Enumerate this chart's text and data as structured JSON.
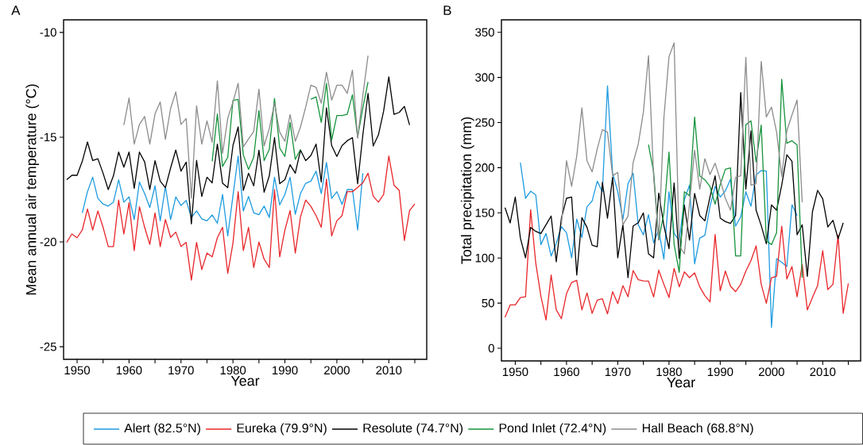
{
  "chart_data": [
    {
      "type": "line",
      "title": "A",
      "xlabel": "Year",
      "ylabel": "Mean annual air temperature (°C)",
      "xlim": [
        1947.4,
        2017.3
      ],
      "ylim": [
        -25.6,
        -9.4
      ],
      "xticks": [
        1950,
        {
          "value": 1955,
          "label": null
        },
        1960,
        {
          "value": 1965,
          "label": null
        },
        1970,
        {
          "value": 1975,
          "label": null
        },
        1980,
        {
          "value": 1985,
          "label": null
        },
        1990,
        {
          "value": 1995,
          "label": null
        },
        2000,
        {
          "value": 2005,
          "label": null
        },
        2010,
        {
          "value": 2015,
          "label": null
        }
      ],
      "yticks": [
        -25,
        -20,
        -15,
        -10
      ],
      "legend": "bottom",
      "line_style": "solid",
      "series": [
        {
          "name": "Alert (82.5°N)",
          "color": "#1e9be0",
          "x": [
            1951,
            1952,
            1953,
            1954,
            1955,
            1956,
            1957,
            1958,
            1959,
            1960,
            1961,
            1962,
            1963,
            1964,
            1965,
            1966,
            1967,
            1968,
            1969,
            1970,
            1971,
            1972,
            1973,
            1974,
            1975,
            1976,
            1977,
            1978,
            1979,
            1980,
            1981,
            1982,
            1983,
            1984,
            1985,
            1986,
            1987,
            1988,
            1989,
            1990,
            1991,
            1992,
            1993,
            1994,
            1995,
            1996,
            1997,
            1998,
            1999,
            2000,
            2001,
            2002,
            2003,
            2004,
            2005
          ],
          "values": [
            -18.61,
            -17.6,
            -16.91,
            -17.92,
            -18.19,
            -18.29,
            -18.1,
            -17.03,
            -18.1,
            -17.85,
            -18.93,
            -17.14,
            -17.69,
            -18.36,
            -17.32,
            -18.99,
            -17.35,
            -18.93,
            -17.85,
            -18.26,
            -18.02,
            -18.83,
            -18.52,
            -18.9,
            -18.99,
            -18.71,
            -19.11,
            -17.73,
            -19.71,
            -17.8,
            -15.9,
            -18.52,
            -17.83,
            -18.61,
            -18.7,
            -18.29,
            -18.83,
            -16.91,
            -18.23,
            -17.73,
            -16.91,
            -18.68,
            -17.69,
            -17.2,
            -17.1,
            -16.62,
            -17.69,
            -16.21,
            -17.92,
            -17.6,
            -18.21,
            -17.5,
            -17.5,
            -19.43,
            -16.72
          ]
        },
        {
          "name": "Eureka (79.9°N)",
          "color": "#e8262a",
          "x": [
            1948,
            1949,
            1950,
            1951,
            1952,
            1953,
            1954,
            1955,
            1956,
            1957,
            1958,
            1959,
            1960,
            1961,
            1962,
            1963,
            1964,
            1965,
            1966,
            1967,
            1968,
            1969,
            1970,
            1971,
            1972,
            1973,
            1974,
            1975,
            1976,
            1977,
            1978,
            1979,
            1980,
            1981,
            1982,
            1983,
            1984,
            1985,
            1986,
            1987,
            1988,
            1989,
            1990,
            1991,
            1992,
            1993,
            1994,
            1995,
            1996,
            1997,
            1998,
            1999,
            2000,
            2001,
            2002,
            2003,
            2004,
            2005,
            2006,
            2007,
            2008,
            2009,
            2010,
            2011,
            2012,
            2013,
            2014,
            2015
          ],
          "values": [
            -20.02,
            -19.62,
            -19.8,
            -19.43,
            -18.42,
            -19.43,
            -18.52,
            -19.3,
            -20.22,
            -20.22,
            -18.0,
            -19.62,
            -18.13,
            -20.41,
            -18.32,
            -19.3,
            -20.12,
            -18.61,
            -20.22,
            -18.93,
            -19.78,
            -19.53,
            -20.22,
            -20.02,
            -21.82,
            -20.02,
            -21.32,
            -20.53,
            -20.71,
            -19.8,
            -19.3,
            -21.5,
            -20.06,
            -17.6,
            -20.41,
            -19.3,
            -21.22,
            -20.0,
            -20.82,
            -21.22,
            -17.5,
            -20.71,
            -19.43,
            -18.5,
            -20.53,
            -18.8,
            -18.0,
            -18.3,
            -18.74,
            -19.3,
            -17.0,
            -19.71,
            -18.99,
            -18.74,
            -17.6,
            -17.6,
            -17.4,
            -17.18,
            -16.72,
            -17.82,
            -18.1,
            -17.73,
            -15.9,
            -17.29,
            -17.54,
            -19.93,
            -18.5,
            -18.19
          ]
        },
        {
          "name": "Resolute (74.7°N)",
          "color": "#000000",
          "x": [
            1948,
            1949,
            1950,
            1951,
            1952,
            1953,
            1954,
            1955,
            1956,
            1957,
            1958,
            1959,
            1960,
            1961,
            1962,
            1963,
            1964,
            1965,
            1966,
            1967,
            1968,
            1969,
            1970,
            1971,
            1972,
            1973,
            1974,
            1975,
            1976,
            1977,
            1978,
            1979,
            1980,
            1981,
            1982,
            1983,
            1984,
            1985,
            1986,
            1987,
            1988,
            1989,
            1990,
            1991,
            1992,
            1993,
            1994,
            1995,
            1996,
            1997,
            1998,
            1999,
            2000,
            2001,
            2002,
            2003,
            2004,
            2005,
            2006,
            2007,
            2008,
            2009,
            2010,
            2011,
            2012,
            2013,
            2014
          ],
          "values": [
            -17.03,
            -16.82,
            -16.82,
            -16.15,
            -15.23,
            -16.11,
            -16.03,
            -16.72,
            -17.5,
            -16.84,
            -15.71,
            -16.43,
            -15.71,
            -17.44,
            -15.71,
            -16.18,
            -17.5,
            -16.12,
            -17.1,
            -17.41,
            -16.47,
            -15.61,
            -16.62,
            -16.19,
            -19.14,
            -16.11,
            -17.83,
            -16.91,
            -17.18,
            -15.33,
            -17.2,
            -17.41,
            -15.4,
            -14.51,
            -17.54,
            -16.72,
            -17.32,
            -15.62,
            -17.63,
            -16.84,
            -15.02,
            -17.22,
            -17.03,
            -16.31,
            -16.72,
            -15.62,
            -16.12,
            -15.87,
            -15.33,
            -17.14,
            -13.6,
            -15.4,
            -15.92,
            -15.4,
            -15.17,
            -15.02,
            -17.22,
            -14.9,
            -12.91,
            -15.42,
            -14.89,
            -13.76,
            -12.12,
            -13.91,
            -13.82,
            -13.53,
            -14.42
          ]
        },
        {
          "name": "Pond Inlet (72.4°N)",
          "color": "#15933b",
          "x": [
            1976,
            1977,
            1978,
            1979,
            1980,
            1981,
            1982,
            1983,
            1984,
            1985,
            1986,
            1987,
            1988,
            1989,
            1990,
            1991,
            1992,
            1993,
            1994,
            1995,
            1996,
            1997,
            1998,
            1999,
            2000,
            2001,
            2002,
            2003,
            2004,
            2005,
            2006
          ],
          "values": [
            -16.15,
            -13.89,
            -16.4,
            -15.96,
            -13.25,
            -13.2,
            -15.85,
            -16.54,
            -15.96,
            -13.73,
            -16.12,
            -15.58,
            -13.15,
            -15.52,
            -15.92,
            -14.3,
            -16.06,
            -15.58,
            null,
            -13.19,
            -13.08,
            -14.3,
            -12.43,
            -15.14,
            -13.97,
            -13.97,
            -13.91,
            -12.97,
            -15.0,
            -13.6,
            -12.37
          ]
        },
        {
          "name": "Hall Beach (68.8°N)",
          "color": "#8c8c8c",
          "x": [
            1959,
            1960,
            1961,
            1962,
            1963,
            1964,
            1965,
            1966,
            1967,
            1968,
            1969,
            1970,
            1971,
            1972,
            1973,
            1974,
            1975,
            1976,
            1977,
            1978,
            1979,
            1980,
            1981,
            1982,
            1983,
            1984,
            1985,
            1986,
            1987,
            1988,
            1989,
            1990,
            1991,
            1992,
            1993,
            1994,
            1995,
            1996,
            1997,
            1998,
            1999,
            2000,
            2001,
            2002,
            2003,
            2004,
            2005,
            2006
          ],
          "values": [
            -14.42,
            -13.13,
            -15.33,
            -14.39,
            -14.01,
            -15.33,
            -13.89,
            -13.32,
            -15.1,
            -13.63,
            -12.84,
            -14.39,
            -14.11,
            -17.92,
            -13.5,
            -15.33,
            -14.22,
            -15.24,
            -12.31,
            -15.77,
            -14.1,
            -13.32,
            -12.43,
            -15.46,
            -15.08,
            -14.73,
            -12.71,
            -15.42,
            -14.58,
            -13.38,
            -14.76,
            -15.2,
            -13.92,
            -15.2,
            -14.51,
            -13.57,
            -12.52,
            -12.62,
            -13.38,
            -11.9,
            -13.23,
            -12.52,
            -12.52,
            -12.91,
            -11.8,
            -15.05,
            -13.0,
            -11.11
          ]
        }
      ]
    },
    {
      "type": "line",
      "title": "B",
      "xlabel": "Year",
      "ylabel": "Total precipitation (mm)",
      "xlim": [
        1947.3,
        2017.4
      ],
      "ylim": [
        -14,
        363.8
      ],
      "xticks": [
        1950,
        {
          "value": 1955,
          "label": null
        },
        1960,
        {
          "value": 1965,
          "label": null
        },
        1970,
        {
          "value": 1975,
          "label": null
        },
        1980,
        {
          "value": 1985,
          "label": null
        },
        1990,
        {
          "value": 1995,
          "label": null
        },
        2000,
        {
          "value": 2005,
          "label": null
        },
        2010,
        {
          "value": 2015,
          "label": null
        }
      ],
      "yticks": [
        0,
        50,
        100,
        150,
        200,
        250,
        300,
        350
      ],
      "line_style": "solid",
      "series": [
        {
          "color": "#1e9be0",
          "x": [
            1951,
            1952,
            1953,
            1954,
            1955,
            1956,
            1957,
            1958,
            1959,
            1960,
            1961,
            1962,
            1963,
            1964,
            1965,
            1966,
            1967,
            1968,
            1969,
            1970,
            1971,
            1972,
            1973,
            1974,
            1975,
            1976,
            1977,
            1978,
            1979,
            1980,
            1981,
            1982,
            1983,
            1984,
            1985,
            1986,
            1987,
            1988,
            1989,
            1990,
            1991,
            1992,
            1993,
            1994,
            1995,
            1996,
            1997,
            1998,
            1999,
            2000,
            2001,
            2002,
            2003,
            2004,
            2005
          ],
          "values": [
            205.6,
            166.1,
            174,
            169.9,
            114.8,
            127.1,
            102.2,
            116.3,
            134.7,
            128,
            100.2,
            143.2,
            122.7,
            156.7,
            163.2,
            185.1,
            173.4,
            290.6,
            193.9,
            173.4,
            142.6,
            182.2,
            193.9,
            136.8,
            125.7,
            147.9,
            116.9,
            130.9,
            98.7,
            173.4,
            127.4,
            119.2,
            164.6,
            180.7,
            93.4,
            122.1,
            125.1,
            157.3,
            179.3,
            167.5,
            174.3,
            187.2,
            135.3,
            145.6,
            173.4,
            157.3,
            191.9,
            196.8,
            196.3,
            23.1,
            99.3,
            95.2,
            90.5,
            158.8,
            147
          ]
        },
        {
          "color": "#e8262a",
          "x": [
            1948,
            1949,
            1950,
            1951,
            1952,
            1953,
            1954,
            1955,
            1956,
            1957,
            1958,
            1959,
            1960,
            1961,
            1962,
            1963,
            1964,
            1965,
            1966,
            1967,
            1968,
            1969,
            1970,
            1971,
            1972,
            1973,
            1974,
            1975,
            1976,
            1977,
            1978,
            1979,
            1980,
            1981,
            1982,
            1983,
            1984,
            1985,
            1986,
            1987,
            1988,
            1989,
            1990,
            1991,
            1992,
            1993,
            1994,
            1995,
            1996,
            1997,
            1998,
            1999,
            2000,
            2001,
            2002,
            2003,
            2004,
            2005,
            2006,
            2007,
            2008,
            2009,
            2010,
            2011,
            2012,
            2013,
            2014,
            2015
          ],
          "values": [
            34.3,
            48,
            48,
            56.2,
            57,
            153.5,
            94.3,
            57.7,
            31.3,
            81.1,
            42.5,
            32.8,
            60.6,
            72.9,
            75.3,
            42.5,
            61.2,
            38.7,
            53.3,
            54.8,
            38.1,
            62.7,
            49.5,
            69.4,
            57.1,
            86.1,
            75.9,
            74.7,
            74.4,
            56.8,
            86.4,
            70.9,
            56.2,
            88.5,
            68,
            84.6,
            78.2,
            83.5,
            68,
            58.3,
            51.3,
            126,
            63.6,
            85.5,
            68.8,
            62.7,
            70.9,
            85.5,
            97.2,
            113.4,
            70.9,
            49.8,
            78.2,
            79.7,
            135.3,
            76.7,
            90.5,
            57.1,
            92.9,
            42.5,
            56.2,
            69.4,
            108.1,
            65,
            70.9,
            125.1,
            38.7,
            71.8
          ]
        },
        {
          "color": "#000000",
          "x": [
            1948,
            1949,
            1950,
            1951,
            1952,
            1953,
            1954,
            1955,
            1956,
            1957,
            1958,
            1959,
            1960,
            1961,
            1962,
            1963,
            1964,
            1965,
            1966,
            1967,
            1968,
            1969,
            1970,
            1971,
            1972,
            1973,
            1974,
            1975,
            1976,
            1977,
            1978,
            1979,
            1980,
            1981,
            1982,
            1983,
            1984,
            1985,
            1986,
            1987,
            1988,
            1989,
            1990,
            1991,
            1992,
            1993,
            1994,
            1995,
            1996,
            1997,
            1998,
            1999,
            2000,
            2001,
            2002,
            2003,
            2004,
            2005,
            2006,
            2007,
            2008,
            2009,
            2010,
            2011,
            2012,
            2013,
            2014
          ],
          "values": [
            155.8,
            138.8,
            167.5,
            122.1,
            100.2,
            133.9,
            129.5,
            127.1,
            136.8,
            146.5,
            95.8,
            144.1,
            166.1,
            167.5,
            81.1,
            144.7,
            133.9,
            114.2,
            112.5,
            183.7,
            144.1,
            189.5,
            100.2,
            136.8,
            78.2,
            135.3,
            139.1,
            150,
            104.6,
            100.2,
            171.9,
            136,
            110.4,
            183,
            99.3,
            158.8,
            119.8,
            171.4,
            147,
            141.2,
            167.5,
            191,
            144.1,
            140.3,
            138.3,
            147,
            283.2,
            176.3,
            240.8,
            152.9,
            135.9,
            115.7,
            158.8,
            152.9,
            180.7,
            214.4,
            207.1,
            125.7,
            136.8,
            79.7,
            151.4,
            174.9,
            165.5,
            134.4,
            141.8,
            121.3,
            138.8
          ]
        },
        {
          "color": "#15933b",
          "x": [
            1976,
            1977,
            1978,
            1979,
            1980,
            1981,
            1982,
            1983,
            1984,
            1985,
            1986,
            1987,
            1988,
            1989,
            1990,
            1991,
            1992,
            1993,
            1994,
            1995,
            1996,
            1997,
            1998,
            1999,
            2000,
            2001,
            2002,
            2003,
            2004,
            2005,
            2006
          ],
          "values": [
            225.5,
            195.4,
            120,
            150,
            217.3,
            115,
            84.1,
            173.4,
            169,
            256,
            191,
            186.6,
            179.3,
            159.6,
            181.3,
            198.3,
            199.8,
            102.2,
            102.2,
            247.5,
            251.9,
            206.5,
            247.2,
            119.2,
            114.8,
            128,
            297.9,
            227,
            229.9,
            225.2,
            78.2
          ]
        },
        {
          "color": "#8c8c8c",
          "x": [
            1959,
            1960,
            1961,
            1962,
            1963,
            1964,
            1965,
            1966,
            1967,
            1968,
            1969,
            1970,
            1971,
            1972,
            1973,
            1974,
            1975,
            1976,
            1977,
            1978,
            1979,
            1980,
            1981,
            1982,
            1983,
            1984,
            1985,
            1986,
            1987,
            1988,
            1989,
            1990,
            1991,
            1992,
            1993,
            1994,
            1995,
            1996,
            1997,
            1998,
            1999,
            2000,
            2001,
            2002,
            2003,
            2004,
            2005,
            2006
          ],
          "values": [
            136.8,
            207.7,
            179.3,
            213,
            266.3,
            207.7,
            195.4,
            220.9,
            242.2,
            239.3,
            191,
            194.8,
            136.8,
            146.2,
            205.6,
            226.1,
            261.3,
            324.2,
            190,
            120,
            255,
            322.8,
            338.3,
            113.4,
            104.6,
            160,
            219.4,
            176.3,
            210,
            192.4,
            205,
            186.6,
            166.1,
            152.9,
            189.5,
            191,
            322.2,
            180.7,
            182.2,
            317.8,
            256.3,
            267.1,
            239.3,
            190.4,
            240.8,
            258.3,
            275,
            161.7
          ]
        }
      ]
    }
  ]
}
